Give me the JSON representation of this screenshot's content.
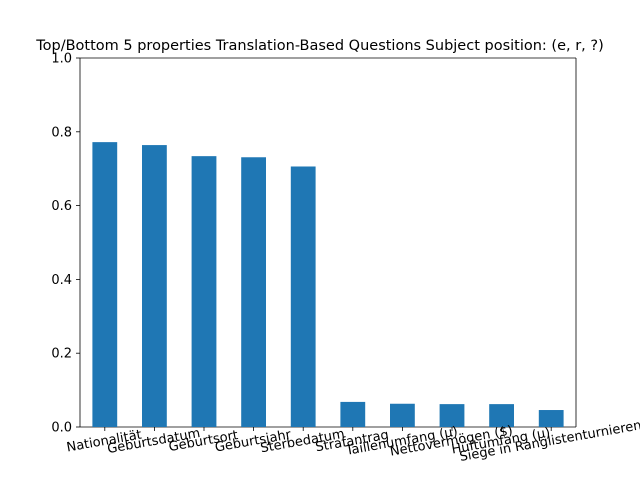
{
  "chart_data": {
    "type": "bar",
    "title": "Top/Bottom 5 properties Translation-Based Questions Subject position: (e, r, ?)",
    "xlabel": "",
    "ylabel": "",
    "categories": [
      "Nationalität",
      "Geburtsdatum",
      "Geburtsort",
      "Geburtsjahr",
      "Sterbedatum",
      "Strafantrag",
      "Taillenumfang (μ)",
      "Nettovermögen ($)",
      "Hüftumfang (μ)",
      "Siege in Ranglistenturnieren"
    ],
    "values": [
      0.772,
      0.764,
      0.734,
      0.731,
      0.706,
      0.068,
      0.063,
      0.062,
      0.062,
      0.046
    ],
    "ylim": [
      0,
      1.0
    ],
    "yticks": [
      "0.0",
      "0.2",
      "0.4",
      "0.6",
      "0.8",
      "1.0"
    ],
    "bar_color": "#1f77b4",
    "grid": false,
    "legend": "none"
  }
}
